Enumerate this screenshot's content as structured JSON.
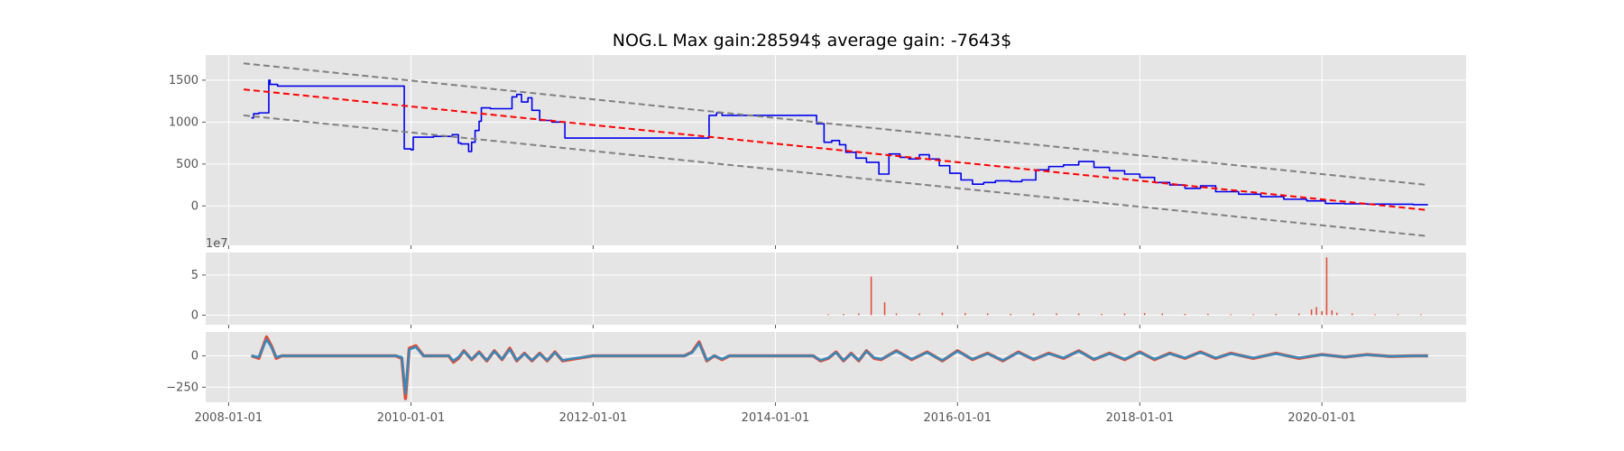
{
  "title": "NOG.L Max gain:28594$  average gain: -7643$",
  "colors": {
    "panel_bg": "#e5e5e5",
    "grid": "#ffffff",
    "tick": "#555555",
    "price": "#0000ee",
    "trend": "#ff0000",
    "channel": "#808080",
    "volume": "#e24a33",
    "osc_a": "#e24a33",
    "osc_b": "#348abd"
  },
  "chart_data": [
    {
      "type": "line",
      "name": "price",
      "xlim": [
        "2007-10-01",
        "2021-08-01"
      ],
      "ylim": [
        -470,
        1800
      ],
      "yticks": [
        0,
        500,
        1000,
        1500
      ],
      "ytick_labels": [
        "0",
        "500",
        "1000",
        "1500"
      ],
      "grid": true,
      "series": [
        {
          "style": "step",
          "color": "#0000ee",
          "x": [
            "2008-04-01",
            "2008-04-10",
            "2008-05-01",
            "2008-06-10",
            "2008-06-15",
            "2008-06-20",
            "2008-07-15",
            "2009-11-25",
            "2009-12-05",
            "2010-01-01",
            "2010-01-10",
            "2010-04-01",
            "2010-06-15",
            "2010-07-10",
            "2010-07-20",
            "2010-08-20",
            "2010-09-01",
            "2010-09-15",
            "2010-10-01",
            "2010-10-10",
            "2010-11-15",
            "2011-02-10",
            "2011-03-01",
            "2011-03-20",
            "2011-04-15",
            "2011-05-01",
            "2011-06-01",
            "2011-07-20",
            "2011-09-10",
            "2011-09-25",
            "2013-02-01",
            "2013-04-10",
            "2013-05-10",
            "2013-06-01",
            "2014-05-01",
            "2014-06-15",
            "2014-07-15",
            "2014-08-15",
            "2014-09-15",
            "2014-10-10",
            "2014-11-20",
            "2015-01-01",
            "2015-02-20",
            "2015-04-01",
            "2015-05-15",
            "2015-06-20",
            "2015-08-01",
            "2015-09-10",
            "2015-10-20",
            "2015-12-01",
            "2016-01-15",
            "2016-03-01",
            "2016-04-15",
            "2016-06-01",
            "2016-08-01",
            "2016-09-15",
            "2016-11-10",
            "2017-01-01",
            "2017-03-01",
            "2017-05-01",
            "2017-07-01",
            "2017-09-01",
            "2017-11-01",
            "2018-01-01",
            "2018-03-01",
            "2018-05-01",
            "2018-07-01",
            "2018-09-01",
            "2018-11-01",
            "2019-02-01",
            "2019-05-01",
            "2019-08-01",
            "2019-11-01",
            "2020-01-15",
            "2020-04-01",
            "2020-07-01",
            "2020-10-01",
            "2021-01-01",
            "2021-03-01"
          ],
          "y": [
            1050,
            1100,
            1110,
            1500,
            1450,
            1450,
            1430,
            1430,
            680,
            670,
            820,
            830,
            850,
            750,
            740,
            650,
            760,
            900,
            1010,
            1170,
            1160,
            1300,
            1330,
            1240,
            1290,
            1140,
            1020,
            1000,
            810,
            810,
            810,
            1080,
            1110,
            1080,
            1080,
            980,
            760,
            780,
            730,
            640,
            570,
            520,
            380,
            620,
            580,
            560,
            610,
            560,
            480,
            390,
            310,
            260,
            280,
            300,
            290,
            310,
            430,
            470,
            490,
            530,
            460,
            420,
            380,
            340,
            280,
            250,
            210,
            240,
            170,
            140,
            110,
            80,
            60,
            30,
            25,
            22,
            20,
            15,
            15
          ]
        },
        {
          "style": "dashed",
          "color": "#ff0000",
          "x": [
            "2008-03-01",
            "2021-03-01"
          ],
          "y": [
            1390,
            -50
          ]
        },
        {
          "style": "dashed",
          "color": "#808080",
          "x": [
            "2008-03-01",
            "2021-03-01"
          ],
          "y": [
            1700,
            250
          ]
        },
        {
          "style": "dashed",
          "color": "#808080",
          "x": [
            "2008-03-01",
            "2021-03-01"
          ],
          "y": [
            1080,
            -360
          ]
        }
      ]
    },
    {
      "type": "bar",
      "name": "volume",
      "scale_label": "1e7",
      "xlim": [
        "2007-10-01",
        "2021-08-01"
      ],
      "ylim": [
        -1.2,
        7.8
      ],
      "yticks": [
        0,
        5
      ],
      "ytick_labels": [
        "0",
        "5"
      ],
      "grid": true,
      "x": [
        "2014-08-01",
        "2014-10-01",
        "2014-12-01",
        "2015-01-20",
        "2015-03-15",
        "2015-05-01",
        "2015-08-01",
        "2015-11-01",
        "2016-02-01",
        "2016-05-01",
        "2016-08-01",
        "2016-11-01",
        "2017-02-01",
        "2017-05-01",
        "2017-08-01",
        "2017-11-01",
        "2018-01-20",
        "2018-04-01",
        "2018-07-01",
        "2018-10-01",
        "2019-01-01",
        "2019-04-01",
        "2019-07-01",
        "2019-10-01",
        "2019-11-20",
        "2019-12-10",
        "2020-01-01",
        "2020-01-20",
        "2020-02-10",
        "2020-03-01",
        "2020-05-01",
        "2020-08-01",
        "2020-11-01",
        "2021-02-01"
      ],
      "values": [
        0.1,
        0.15,
        0.2,
        4.8,
        1.6,
        0.2,
        0.2,
        0.3,
        0.25,
        0.2,
        0.15,
        0.2,
        0.2,
        0.2,
        0.15,
        0.2,
        0.25,
        0.2,
        0.15,
        0.15,
        0.1,
        0.1,
        0.15,
        0.2,
        0.7,
        1.0,
        0.5,
        7.2,
        0.6,
        0.3,
        0.2,
        0.1,
        0.1,
        0.1
      ]
    },
    {
      "type": "line",
      "name": "oscillator",
      "xlim": [
        "2007-10-01",
        "2021-08-01"
      ],
      "ylim": [
        -370,
        190
      ],
      "yticks": [
        -250,
        0
      ],
      "ytick_labels": [
        "−250",
        "0"
      ],
      "grid": true,
      "xticks": [
        "2008-01-01",
        "2010-01-01",
        "2012-01-01",
        "2014-01-01",
        "2016-01-01",
        "2018-01-01",
        "2020-01-01"
      ],
      "xtick_labels": [
        "2008-01-01",
        "2010-01-01",
        "2012-01-01",
        "2014-01-01",
        "2016-01-01",
        "2018-01-01",
        "2020-01-01"
      ],
      "series": [
        {
          "color": "#e24a33",
          "x": [
            "2008-04-01",
            "2008-05-01",
            "2008-06-01",
            "2008-06-20",
            "2008-07-10",
            "2008-08-01",
            "2008-09-01",
            "2009-11-01",
            "2009-11-25",
            "2009-12-10",
            "2009-12-25",
            "2010-01-20",
            "2010-02-20",
            "2010-04-01",
            "2010-06-01",
            "2010-06-20",
            "2010-07-10",
            "2010-08-01",
            "2010-09-01",
            "2010-10-01",
            "2010-11-01",
            "2010-12-01",
            "2011-01-01",
            "2011-02-01",
            "2011-03-01",
            "2011-04-01",
            "2011-05-01",
            "2011-06-01",
            "2011-07-01",
            "2011-08-01",
            "2011-09-01",
            "2011-10-01",
            "2012-01-01",
            "2013-01-01",
            "2013-02-01",
            "2013-03-01",
            "2013-04-01",
            "2013-05-01",
            "2013-06-01",
            "2013-07-01",
            "2014-03-01",
            "2014-05-01",
            "2014-06-01",
            "2014-07-01",
            "2014-08-01",
            "2014-09-01",
            "2014-10-01",
            "2014-11-01",
            "2014-12-01",
            "2015-01-01",
            "2015-02-01",
            "2015-03-01",
            "2015-05-01",
            "2015-07-01",
            "2015-09-01",
            "2015-11-01",
            "2016-01-01",
            "2016-03-01",
            "2016-05-01",
            "2016-07-01",
            "2016-09-01",
            "2016-11-01",
            "2017-01-01",
            "2017-03-01",
            "2017-05-01",
            "2017-07-01",
            "2017-09-01",
            "2017-11-01",
            "2018-01-01",
            "2018-03-01",
            "2018-05-01",
            "2018-07-01",
            "2018-09-01",
            "2018-11-01",
            "2019-01-01",
            "2019-04-01",
            "2019-07-01",
            "2019-10-01",
            "2020-01-01",
            "2020-04-01",
            "2020-07-01",
            "2020-10-01",
            "2021-01-01",
            "2021-03-01"
          ],
          "y": [
            0,
            -20,
            150,
            80,
            -20,
            0,
            0,
            0,
            -20,
            -340,
            60,
            80,
            0,
            0,
            0,
            -50,
            -20,
            40,
            -30,
            30,
            -40,
            40,
            -30,
            60,
            -40,
            20,
            -40,
            20,
            -40,
            30,
            -40,
            -30,
            0,
            0,
            30,
            110,
            -40,
            0,
            -30,
            0,
            0,
            0,
            0,
            -40,
            -20,
            30,
            -40,
            20,
            -40,
            40,
            -20,
            -30,
            40,
            -30,
            30,
            -40,
            40,
            -30,
            20,
            -40,
            30,
            -30,
            20,
            -20,
            40,
            -30,
            20,
            -30,
            30,
            -30,
            20,
            -20,
            30,
            -20,
            20,
            -20,
            20,
            -20,
            10,
            -10,
            10,
            -5,
            0,
            0
          ]
        },
        {
          "color": "#348abd",
          "x": [
            "2008-04-01",
            "2008-05-01",
            "2008-06-01",
            "2008-06-20",
            "2008-07-10",
            "2008-08-01",
            "2008-09-01",
            "2009-11-01",
            "2009-11-25",
            "2009-12-10",
            "2009-12-25",
            "2010-01-20",
            "2010-02-20",
            "2010-04-01",
            "2010-06-01",
            "2010-06-20",
            "2010-07-10",
            "2010-08-01",
            "2010-09-01",
            "2010-10-01",
            "2010-11-01",
            "2010-12-01",
            "2011-01-01",
            "2011-02-01",
            "2011-03-01",
            "2011-04-01",
            "2011-05-01",
            "2011-06-01",
            "2011-07-01",
            "2011-08-01",
            "2011-09-01",
            "2011-10-01",
            "2012-01-01",
            "2013-01-01",
            "2013-02-01",
            "2013-03-01",
            "2013-04-01",
            "2013-05-01",
            "2013-06-01",
            "2013-07-01",
            "2014-03-01",
            "2014-05-01",
            "2014-06-01",
            "2014-07-01",
            "2014-08-01",
            "2014-09-01",
            "2014-10-01",
            "2014-11-01",
            "2014-12-01",
            "2015-01-01",
            "2015-02-01",
            "2015-03-01",
            "2015-05-01",
            "2015-07-01",
            "2015-09-01",
            "2015-11-01",
            "2016-01-01",
            "2016-03-01",
            "2016-05-01",
            "2016-07-01",
            "2016-09-01",
            "2016-11-01",
            "2017-01-01",
            "2017-03-01",
            "2017-05-01",
            "2017-07-01",
            "2017-09-01",
            "2017-11-01",
            "2018-01-01",
            "2018-03-01",
            "2018-05-01",
            "2018-07-01",
            "2018-09-01",
            "2018-11-01",
            "2019-01-01",
            "2019-04-01",
            "2019-07-01",
            "2019-10-01",
            "2020-01-01",
            "2020-04-01",
            "2020-07-01",
            "2020-10-01",
            "2021-01-01",
            "2021-03-01"
          ],
          "y": [
            0,
            -10,
            130,
            70,
            -10,
            0,
            0,
            0,
            -10,
            -300,
            50,
            70,
            0,
            0,
            0,
            -40,
            -10,
            35,
            -25,
            25,
            -35,
            35,
            -25,
            50,
            -35,
            15,
            -35,
            15,
            -35,
            25,
            -35,
            -25,
            0,
            0,
            25,
            100,
            -35,
            0,
            -25,
            0,
            0,
            0,
            0,
            -35,
            -15,
            25,
            -35,
            15,
            -35,
            35,
            -15,
            -25,
            35,
            -25,
            25,
            -35,
            35,
            -25,
            15,
            -35,
            25,
            -25,
            15,
            -15,
            35,
            -25,
            15,
            -25,
            25,
            -25,
            15,
            -15,
            25,
            -15,
            15,
            -15,
            15,
            -15,
            8,
            -8,
            8,
            -4,
            0,
            0
          ]
        }
      ]
    }
  ]
}
